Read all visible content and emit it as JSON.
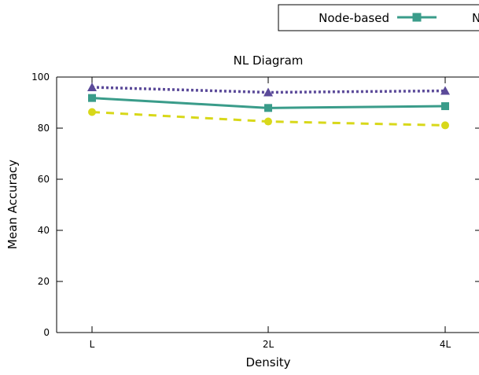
{
  "chart_data": {
    "type": "line",
    "title": "NL Diagram",
    "xlabel": "Density",
    "ylabel": "Mean Accuracy",
    "categories": [
      "L",
      "2L",
      "4L"
    ],
    "ylim": [
      0,
      100
    ],
    "yticks": [
      0,
      20,
      40,
      60,
      80,
      100
    ],
    "grid": false,
    "legend_position": "top-right",
    "legend_visible_text": [
      "Node-based",
      "N"
    ],
    "series": [
      {
        "name": "Node-based",
        "values": [
          91.8,
          87.9,
          88.6
        ],
        "color": "#3a9c8a",
        "marker": "square",
        "line_style": "solid"
      },
      {
        "values": [
          96.0,
          94.0,
          94.6
        ],
        "color": "#5b4a99",
        "marker": "triangle",
        "line_style": "dotted"
      },
      {
        "values": [
          86.3,
          82.6,
          81.1
        ],
        "color": "#d8d81a",
        "marker": "circle",
        "line_style": "dashed"
      }
    ]
  }
}
